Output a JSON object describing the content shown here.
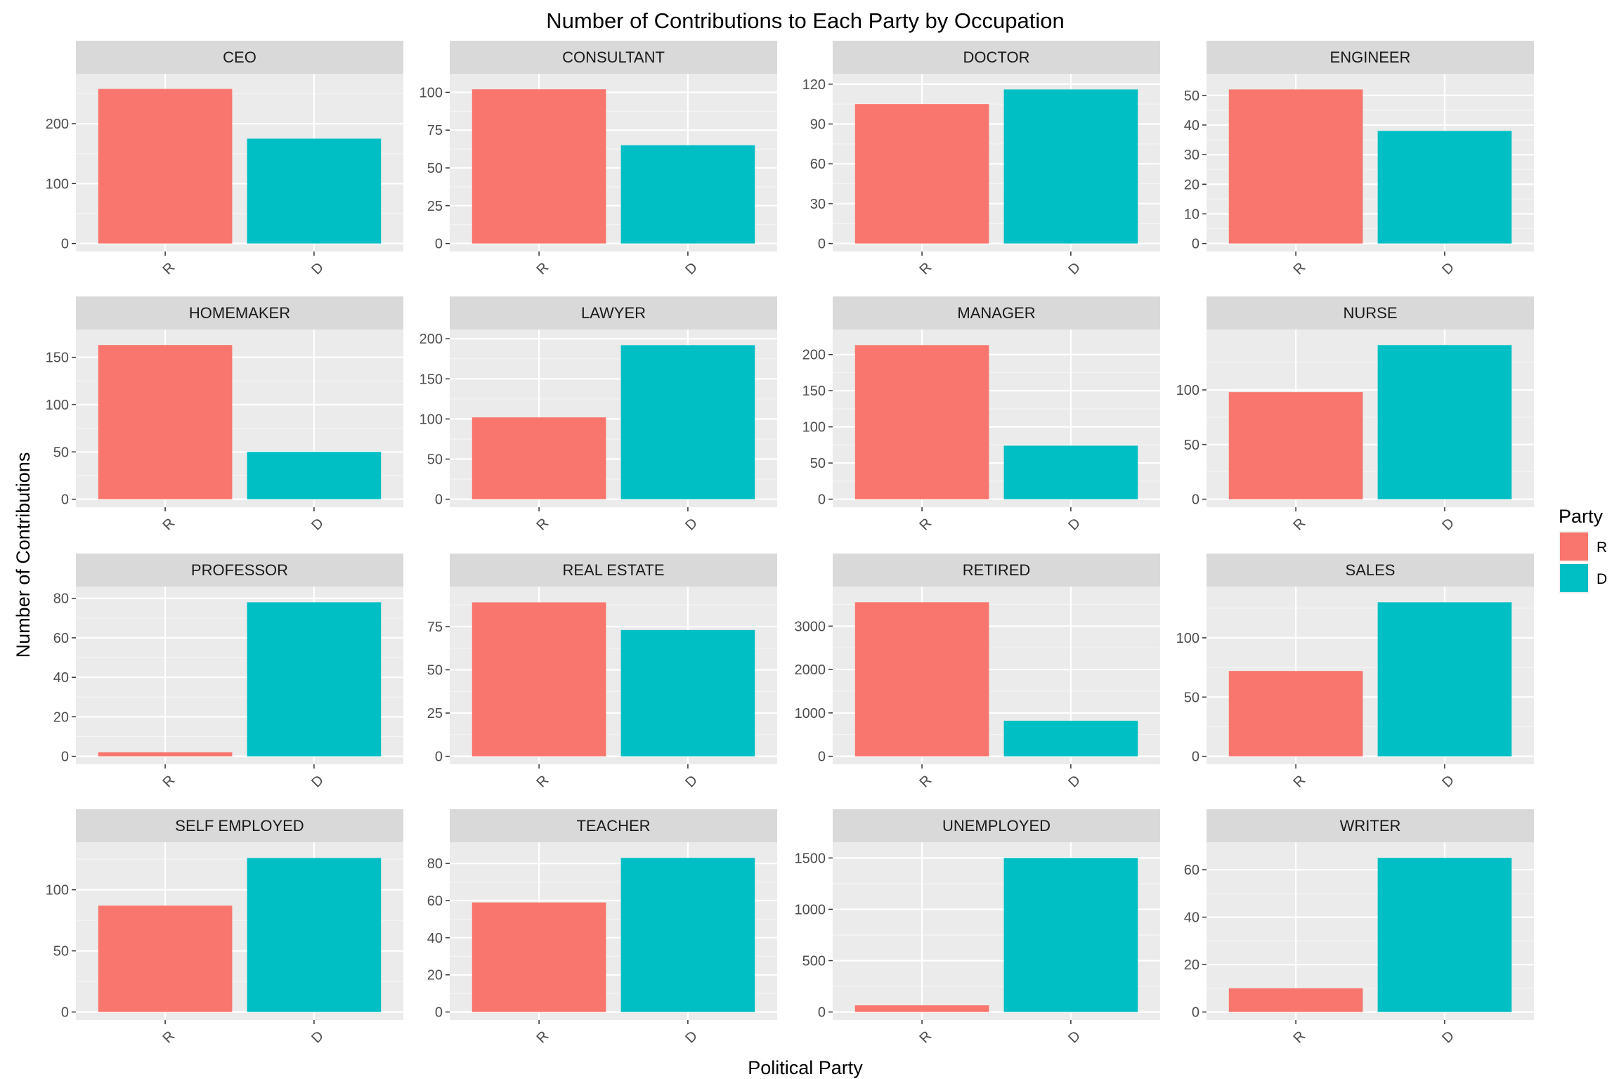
{
  "chart_data": {
    "type": "bar",
    "title": "Number of Contributions to Each Party by Occupation",
    "xlabel": "Political Party",
    "ylabel": "Number of Contributions",
    "categories": [
      "R",
      "D"
    ],
    "legend": {
      "title": "Party",
      "position": "right",
      "entries": [
        {
          "label": "R",
          "color": "#F8766D"
        },
        {
          "label": "D",
          "color": "#00BFC4"
        }
      ]
    },
    "grid": true,
    "facets": [
      {
        "label": "CEO",
        "values": [
          258,
          175
        ],
        "ylim": [
          0,
          270
        ],
        "ticks": [
          0,
          100,
          200
        ]
      },
      {
        "label": "CONSULTANT",
        "values": [
          102,
          65
        ],
        "ylim": [
          0,
          107
        ],
        "ticks": [
          0,
          25,
          50,
          75,
          100
        ]
      },
      {
        "label": "DOCTOR",
        "values": [
          105,
          116
        ],
        "ylim": [
          0,
          121.8
        ],
        "ticks": [
          0,
          30,
          60,
          90,
          120
        ]
      },
      {
        "label": "ENGINEER",
        "values": [
          52,
          38
        ],
        "ylim": [
          0,
          54.6
        ],
        "ticks": [
          0,
          10,
          20,
          30,
          40,
          50
        ]
      },
      {
        "label": "HOMEMAKER",
        "values": [
          163,
          50
        ],
        "ylim": [
          0,
          171
        ],
        "ticks": [
          0,
          50,
          100,
          150
        ]
      },
      {
        "label": "LAWYER",
        "values": [
          102,
          192
        ],
        "ylim": [
          0,
          201.6
        ],
        "ticks": [
          0,
          50,
          100,
          150,
          200
        ]
      },
      {
        "label": "MANAGER",
        "values": [
          213,
          74
        ],
        "ylim": [
          0,
          223.6
        ],
        "ticks": [
          0,
          50,
          100,
          150,
          200
        ]
      },
      {
        "label": "NURSE",
        "values": [
          98,
          141
        ],
        "ylim": [
          0,
          148
        ],
        "ticks": [
          0,
          50,
          100
        ]
      },
      {
        "label": "PROFESSOR",
        "values": [
          2,
          78
        ],
        "ylim": [
          0,
          81.9
        ],
        "ticks": [
          0,
          20,
          40,
          60,
          80
        ]
      },
      {
        "label": "REAL ESTATE",
        "values": [
          89,
          73
        ],
        "ylim": [
          0,
          93.5
        ],
        "ticks": [
          0,
          25,
          50,
          75
        ]
      },
      {
        "label": "RETIRED",
        "values": [
          3550,
          820
        ],
        "ylim": [
          0,
          3727
        ],
        "ticks": [
          0,
          1000,
          2000,
          3000
        ]
      },
      {
        "label": "SALES",
        "values": [
          72,
          130
        ],
        "ylim": [
          0,
          136.5
        ],
        "ticks": [
          0,
          50,
          100
        ]
      },
      {
        "label": "SELF EMPLOYED",
        "values": [
          87,
          126
        ],
        "ylim": [
          0,
          132.3
        ],
        "ticks": [
          0,
          50,
          100
        ]
      },
      {
        "label": "TEACHER",
        "values": [
          59,
          83
        ],
        "ylim": [
          0,
          87.1
        ],
        "ticks": [
          0,
          20,
          40,
          60,
          80
        ]
      },
      {
        "label": "UNEMPLOYED",
        "values": [
          65,
          1500
        ],
        "ylim": [
          0,
          1575
        ],
        "ticks": [
          0,
          500,
          1000,
          1500
        ]
      },
      {
        "label": "WRITER",
        "values": [
          10,
          65
        ],
        "ylim": [
          0,
          68.2
        ],
        "ticks": [
          0,
          20,
          40,
          60
        ]
      }
    ]
  }
}
